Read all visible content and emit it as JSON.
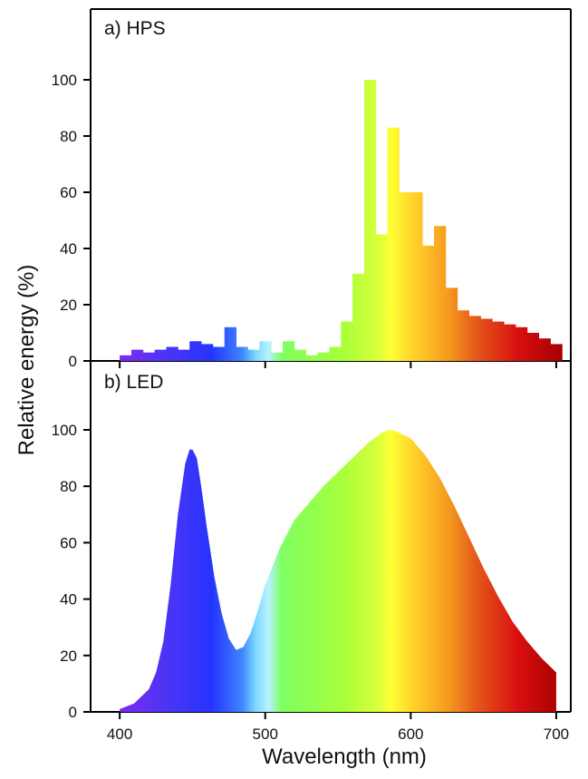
{
  "chart_data": [
    {
      "type": "bar",
      "panel_label": "a) HPS",
      "xlabel": "Wavelength (nm)",
      "ylabel": "Relative energy (%)",
      "xlim": [
        380,
        710
      ],
      "ylim": [
        0,
        115
      ],
      "y_ticks": [
        0,
        20,
        40,
        60,
        80,
        100
      ],
      "x_ticks": [
        400,
        500,
        600,
        700
      ],
      "bin_width_nm": 8,
      "x": [
        404,
        412,
        420,
        428,
        436,
        444,
        452,
        460,
        468,
        476,
        484,
        492,
        500,
        508,
        516,
        524,
        532,
        540,
        548,
        556,
        564,
        572,
        580,
        588,
        596,
        604,
        612,
        620,
        628,
        636,
        644,
        652,
        660,
        668,
        676,
        684,
        692,
        700
      ],
      "values": [
        2,
        4,
        3,
        4,
        5,
        4,
        7,
        6,
        5,
        12,
        5,
        4,
        7,
        3,
        7,
        4,
        2,
        3,
        5,
        14,
        31,
        100,
        45,
        83,
        60,
        60,
        41,
        48,
        26,
        18,
        16,
        15,
        14,
        13,
        12,
        10,
        8,
        6
      ],
      "grid": false
    },
    {
      "type": "area",
      "panel_label": "b) LED",
      "xlabel": "Wavelength (nm)",
      "ylabel": "Relative energy (%)",
      "xlim": [
        380,
        710
      ],
      "ylim": [
        0,
        115
      ],
      "y_ticks": [
        0,
        20,
        40,
        60,
        80,
        100
      ],
      "x_ticks": [
        400,
        500,
        600,
        700
      ],
      "x": [
        400,
        410,
        420,
        425,
        430,
        435,
        440,
        445,
        448,
        450,
        453,
        456,
        460,
        465,
        470,
        475,
        480,
        485,
        490,
        495,
        500,
        510,
        520,
        530,
        540,
        550,
        560,
        570,
        580,
        585,
        590,
        600,
        610,
        620,
        630,
        640,
        650,
        660,
        670,
        680,
        690,
        700
      ],
      "y": [
        1,
        3,
        8,
        14,
        25,
        45,
        70,
        88,
        93,
        93,
        90,
        80,
        65,
        48,
        35,
        26,
        22,
        23,
        28,
        36,
        45,
        58,
        68,
        74,
        80,
        85,
        90,
        95,
        99,
        100,
        99.5,
        97,
        91,
        83,
        73,
        62,
        51,
        41,
        32,
        25,
        19,
        14
      ],
      "grid": false
    }
  ]
}
